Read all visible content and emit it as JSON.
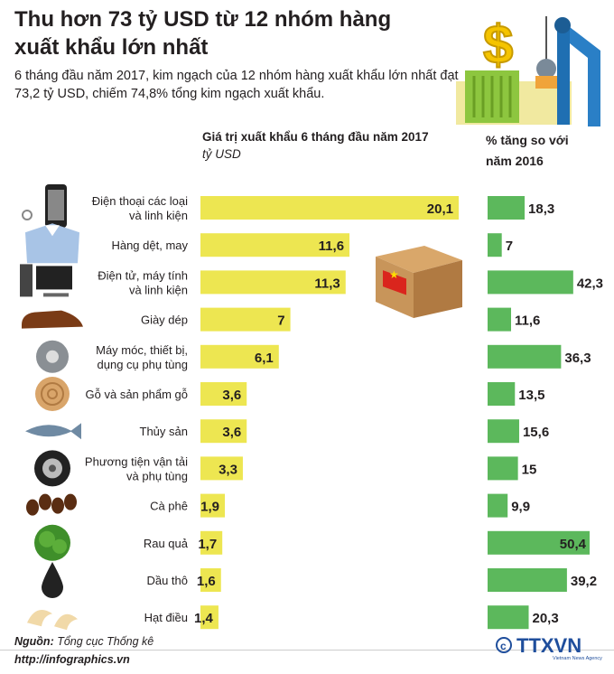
{
  "title": "Thu hơn 73 tỷ USD từ 12 nhóm hàng xuất khẩu lớn nhất",
  "subtitle": "6 tháng đầu năm 2017, kim ngạch của 12 nhóm hàng xuất khẩu lớn nhất đạt 73,2 tỷ USD, chiếm 74,8% tổng kim ngạch xuất khẩu.",
  "bar_header": "Giá trị xuất khẩu 6 tháng đầu năm 2017",
  "bar_unit": "tỷ USD",
  "pct_header_line1": "% tăng so với",
  "pct_header_line2": "năm 2016",
  "source_label": "Nguồn:",
  "source_value": "Tổng cục Thống kê",
  "url": "http://infographics.vn",
  "agency": "TTXVN",
  "agency_sub": "Vietnam News Agency",
  "colors": {
    "bar": "#ede651",
    "pct_bar": "#5cb85c",
    "text": "#231f20"
  },
  "icons": [
    "phone-icon",
    "shirt-icon",
    "computer-icon",
    "shoe-icon",
    "gear-icon",
    "wood-icon",
    "fish-icon",
    "tire-icon",
    "coffee-icon",
    "vegetable-icon",
    "oil-icon",
    "cashew-icon"
  ],
  "chart_data": [
    {
      "type": "bar",
      "orientation": "horizontal",
      "title": "Giá trị xuất khẩu 6 tháng đầu năm 2017",
      "unit": "tỷ USD",
      "categories": [
        "Điện thoại các loại\nvà linh kiện",
        "Hàng dệt, may",
        "Điện tử, máy tính\nvà linh kiện",
        "Giày dép",
        "Máy móc, thiết bị,\ndụng cụ phụ tùng",
        "Gỗ và sản phẩm gỗ",
        "Thủy sản",
        "Phương tiện vận tải\nvà phụ tùng",
        "Cà phê",
        "Rau quả",
        "Dầu thô",
        "Hạt điều"
      ],
      "values": [
        20.1,
        11.6,
        11.3,
        7,
        6.1,
        3.6,
        3.6,
        3.3,
        1.9,
        1.7,
        1.6,
        1.4
      ],
      "labels": [
        "20,1",
        "11,6",
        "11,3",
        "7",
        "6,1",
        "3,6",
        "3,6",
        "3,3",
        "1,9",
        "1,7",
        "1,6",
        "1,4"
      ]
    },
    {
      "type": "bar",
      "orientation": "horizontal",
      "title": "% tăng so với năm 2016",
      "values": [
        18.3,
        7,
        42.3,
        11.6,
        36.3,
        13.5,
        15.6,
        15,
        9.9,
        50.4,
        39.2,
        20.3
      ],
      "labels": [
        "18,3",
        "7",
        "42,3",
        "11,6",
        "36,3",
        "13,5",
        "15,6",
        "15",
        "9,9",
        "50,4",
        "39,2",
        "20,3"
      ]
    }
  ]
}
